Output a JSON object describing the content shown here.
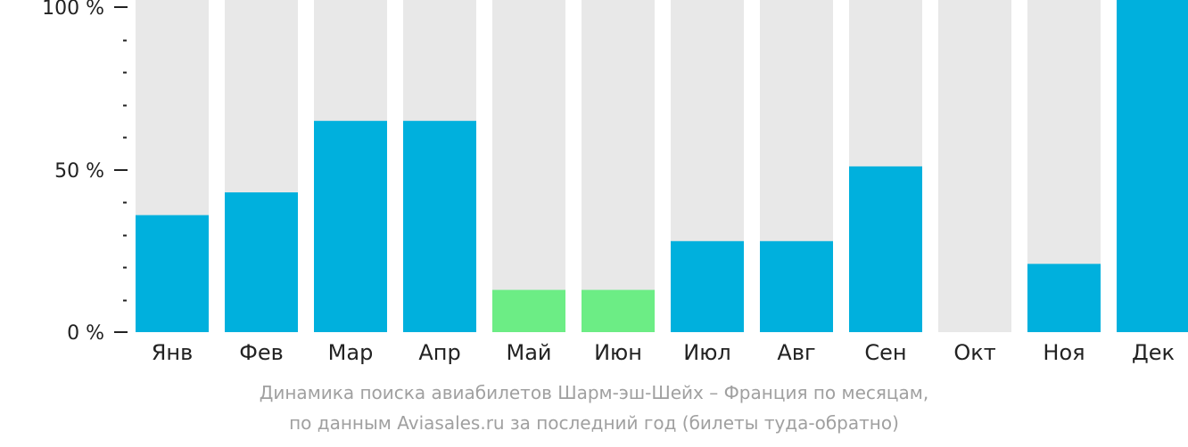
{
  "chart_data": {
    "type": "bar",
    "categories": [
      "Янв",
      "Фев",
      "Мар",
      "Апр",
      "Май",
      "Июн",
      "Июл",
      "Авг",
      "Сен",
      "Окт",
      "Ноя",
      "Дек"
    ],
    "values": [
      36,
      43,
      65,
      65,
      13,
      13,
      28,
      28,
      51,
      0,
      21,
      100
    ],
    "highlight": [
      false,
      false,
      false,
      false,
      true,
      true,
      false,
      false,
      false,
      false,
      false,
      false
    ],
    "ylim": [
      0,
      100
    ],
    "yticks": [
      {
        "value": 0,
        "label": "0 %"
      },
      {
        "value": 50,
        "label": "50 %"
      },
      {
        "value": 100,
        "label": "100 %"
      }
    ],
    "minor_tick_step": 10,
    "colors": {
      "bar": "#00b0dd",
      "bar_highlight": "#6ced85",
      "track": "#e8e8e8",
      "axis": "#222222"
    },
    "grid": false,
    "legend": "none"
  },
  "caption": {
    "line1": "Динамика поиска авиабилетов Шарм-эш-Шейх – Франция по месяцам,",
    "line2": "по данным Aviasales.ru за последний год (билеты туда-обратно)"
  }
}
